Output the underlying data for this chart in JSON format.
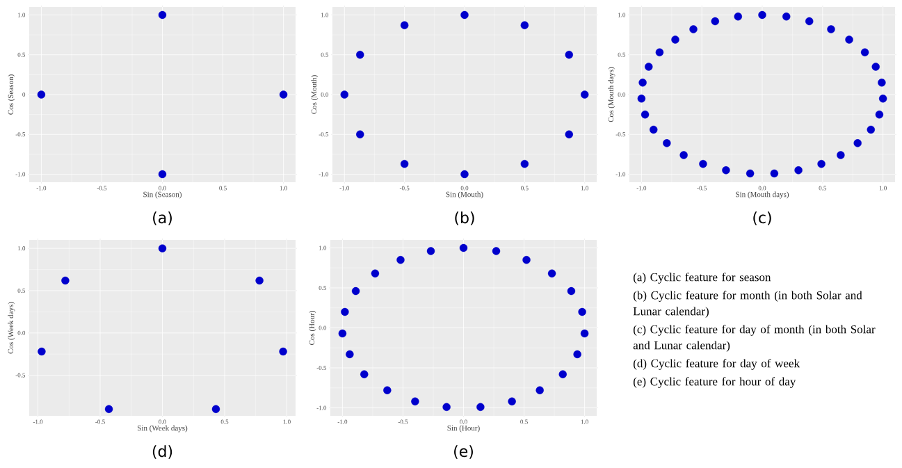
{
  "chart_data": [
    {
      "type": "scatter",
      "title": "(a)",
      "xlabel": "Sin (Season)",
      "ylabel": "Cos (Season)",
      "color": "#0000cc",
      "marker": "circle",
      "grid": true,
      "x": [
        0,
        1,
        0,
        -1
      ],
      "values": [
        1,
        0,
        -1,
        0
      ],
      "xlim": [
        -1.1,
        1.1
      ],
      "ylim": [
        -1.1,
        1.1
      ],
      "xticks": [
        {
          "value": -1,
          "label": "-1.0"
        },
        {
          "value": -0.5,
          "label": "-0.5"
        },
        {
          "value": 0,
          "label": "0.0"
        },
        {
          "value": 0.5,
          "label": "0.5"
        },
        {
          "value": 1,
          "label": "1.0"
        }
      ],
      "yticks": [
        {
          "value": -1,
          "label": "-1.0"
        },
        {
          "value": -0.5,
          "label": "-0.5"
        },
        {
          "value": 0,
          "label": "0"
        },
        {
          "value": 0.5,
          "label": "0.5"
        },
        {
          "value": 1,
          "label": "1.0"
        }
      ]
    },
    {
      "type": "scatter",
      "title": "(b)",
      "xlabel": "Sin (Mouth)",
      "ylabel": "Cos (Mouth)",
      "color": "#0000cc",
      "marker": "circle",
      "grid": true,
      "x": [
        0,
        0.5,
        0.87,
        1,
        0.87,
        0.5,
        0,
        -0.5,
        -0.87,
        -1,
        -0.87,
        -0.5
      ],
      "values": [
        1,
        0.87,
        0.5,
        0,
        -0.5,
        -0.87,
        -1,
        -0.87,
        -0.5,
        0,
        0.5,
        0.87
      ],
      "xlim": [
        -1.1,
        1.1
      ],
      "ylim": [
        -1.1,
        1.1
      ],
      "xticks": [
        {
          "value": -1,
          "label": "-1.0"
        },
        {
          "value": -0.5,
          "label": "-0.5"
        },
        {
          "value": 0,
          "label": "0.0"
        },
        {
          "value": 0.5,
          "label": "0.5"
        },
        {
          "value": 1,
          "label": "1.0"
        }
      ],
      "yticks": [
        {
          "value": -1,
          "label": "-1.0"
        },
        {
          "value": -0.5,
          "label": "-0.5"
        },
        {
          "value": 0,
          "label": "0.0"
        },
        {
          "value": 0.5,
          "label": "0.5"
        },
        {
          "value": 1,
          "label": "1.0"
        }
      ]
    },
    {
      "type": "scatter",
      "title": "(c)",
      "xlabel": "Sin (Mouth days)",
      "ylabel": "Cos (Mouth days)",
      "color": "#0000cc",
      "marker": "circle",
      "grid": true,
      "x": [
        0,
        0.2,
        0.39,
        0.57,
        0.72,
        0.85,
        0.94,
        0.99,
        1.0,
        0.97,
        0.9,
        0.79,
        0.65,
        0.49,
        0.3,
        0.1,
        -0.1,
        -0.3,
        -0.49,
        -0.65,
        -0.79,
        -0.9,
        -0.97,
        -1.0,
        -0.99,
        -0.94,
        -0.85,
        -0.72,
        -0.57,
        -0.39,
        -0.2
      ],
      "values": [
        1,
        0.98,
        0.92,
        0.82,
        0.69,
        0.53,
        0.35,
        0.15,
        -0.05,
        -0.25,
        -0.44,
        -0.61,
        -0.76,
        -0.87,
        -0.95,
        -0.99,
        -0.99,
        -0.95,
        -0.87,
        -0.76,
        -0.61,
        -0.44,
        -0.25,
        -0.05,
        0.15,
        0.35,
        0.53,
        0.69,
        0.82,
        0.92,
        0.98
      ],
      "xlim": [
        -1.1,
        1.1
      ],
      "ylim": [
        -1.1,
        1.1
      ],
      "xticks": [
        {
          "value": -1,
          "label": "-1.0"
        },
        {
          "value": -0.5,
          "label": "-0.5"
        },
        {
          "value": 0,
          "label": "0.0"
        },
        {
          "value": 0.5,
          "label": "0.5"
        },
        {
          "value": 1,
          "label": "1.0"
        }
      ],
      "yticks": [
        {
          "value": -1,
          "label": "-1.0"
        },
        {
          "value": -0.5,
          "label": "-0.5"
        },
        {
          "value": 0,
          "label": "0.0"
        },
        {
          "value": 0.5,
          "label": "0.5"
        },
        {
          "value": 1,
          "label": "1.0"
        }
      ]
    },
    {
      "type": "scatter",
      "title": "(d)",
      "xlabel": "Sin (Week days)",
      "ylabel": "Cos (Week days)",
      "color": "#0000cc",
      "marker": "circle",
      "grid": true,
      "x": [
        0,
        0.78,
        0.97,
        0.43,
        -0.43,
        -0.97,
        -0.78
      ],
      "values": [
        1,
        0.62,
        -0.22,
        -0.9,
        -0.9,
        -0.22,
        0.62
      ],
      "xlim": [
        -1.07,
        1.07
      ],
      "ylim": [
        -0.98,
        1.1
      ],
      "xticks": [
        {
          "value": -1,
          "label": "-1.0"
        },
        {
          "value": -0.5,
          "label": "-0.5"
        },
        {
          "value": 0,
          "label": "0.0"
        },
        {
          "value": 0.5,
          "label": "0.5"
        },
        {
          "value": 1,
          "label": "1.0"
        }
      ],
      "yticks": [
        {
          "value": -0.5,
          "label": "-0.5"
        },
        {
          "value": 0,
          "label": "0.0"
        },
        {
          "value": 0.5,
          "label": "0.5"
        },
        {
          "value": 1,
          "label": "1.0"
        }
      ]
    },
    {
      "type": "scatter",
      "title": "(e)",
      "xlabel": "Sin (Hour)",
      "ylabel": "Cos (Hour)",
      "color": "#0000cc",
      "marker": "circle",
      "grid": true,
      "x": [
        0,
        0.27,
        0.52,
        0.73,
        0.89,
        0.98,
        1.0,
        0.94,
        0.82,
        0.63,
        0.4,
        0.14,
        -0.14,
        -0.4,
        -0.63,
        -0.82,
        -0.94,
        -1.0,
        -0.98,
        -0.89,
        -0.73,
        -0.52,
        -0.27
      ],
      "values": [
        1,
        0.96,
        0.85,
        0.68,
        0.46,
        0.2,
        -0.07,
        -0.33,
        -0.58,
        -0.78,
        -0.92,
        -0.99,
        -0.99,
        -0.92,
        -0.78,
        -0.58,
        -0.33,
        -0.07,
        0.2,
        0.46,
        0.68,
        0.85,
        0.96
      ],
      "xlim": [
        -1.1,
        1.1
      ],
      "ylim": [
        -1.1,
        1.1
      ],
      "xticks": [
        {
          "value": -1,
          "label": "-1.0"
        },
        {
          "value": -0.5,
          "label": "-0.5"
        },
        {
          "value": 0,
          "label": "0.0"
        },
        {
          "value": 0.5,
          "label": "0.5"
        },
        {
          "value": 1,
          "label": "1.0"
        }
      ],
      "yticks": [
        {
          "value": -1,
          "label": "-1.0"
        },
        {
          "value": -0.5,
          "label": "-0.5"
        },
        {
          "value": 0,
          "label": "0.0"
        },
        {
          "value": 0.5,
          "label": "0.5"
        },
        {
          "value": 1,
          "label": "1.0"
        }
      ]
    },
    {
      "type": "other",
      "annotations": [
        "(a) Cyclic feature for season",
        "(b) Cyclic feature for month (in both Solar and Lunar calendar)",
        "(c) Cyclic feature for day of month (in both Solar and Lunar calendar)",
        "(d) Cyclic feature for day of week",
        "(e) Cyclic feature for hour of day"
      ]
    }
  ]
}
